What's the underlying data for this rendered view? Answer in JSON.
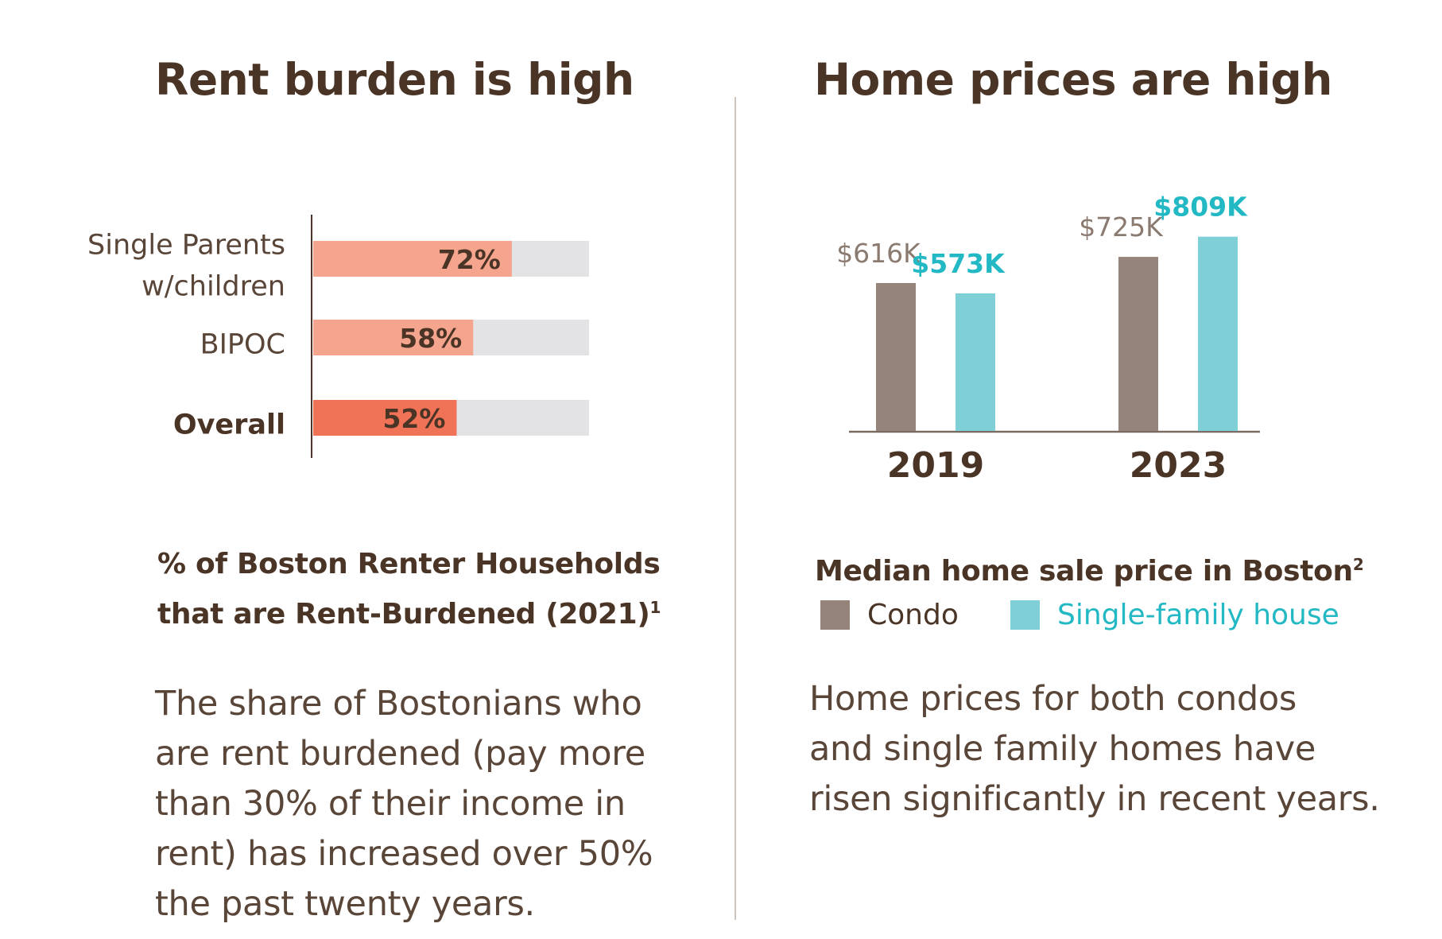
{
  "colors": {
    "condo": "#95847a",
    "single_family": "#7fd0d6",
    "single_family_text": "#22b8c4",
    "rent_bar": "#f5a48e",
    "rent_bar_overall": "#f07257",
    "track": "#e3e3e5",
    "dark_text": "#4a3426",
    "price_label": "#8a7a70"
  },
  "left": {
    "title": "Rent burden is high",
    "caption_line1": "% of Boston Renter Households",
    "caption_line2": "that are Rent-Burdened (2021)",
    "caption_sup": "1",
    "body_lines": [
      "The share of Bostonians who",
      "are rent burdened (pay more",
      "than 30% of their income in",
      "rent) has increased over 50%",
      "the past twenty years."
    ]
  },
  "right": {
    "title": "Home prices are high",
    "caption": "Median home sale price in Boston",
    "caption_sup": "2",
    "legend": {
      "condo": "Condo",
      "single_family": "Single-family house"
    },
    "body_lines": [
      "Home prices for both condos",
      "and single family homes have",
      "risen significantly in recent years."
    ]
  },
  "chart_data": [
    {
      "type": "bar",
      "orientation": "horizontal",
      "title": "% of Boston Renter Households that are Rent-Burdened (2021)",
      "categories": [
        "Single Parents w/children",
        "BIPOC",
        "Overall"
      ],
      "category_lines": [
        [
          "Single Parents",
          "w/children"
        ],
        [
          "BIPOC"
        ],
        [
          "Overall"
        ]
      ],
      "values": [
        72,
        58,
        52
      ],
      "value_labels": [
        "72%",
        "58%",
        "52%"
      ],
      "xlim": [
        0,
        100
      ],
      "highlight": "Overall"
    },
    {
      "type": "bar",
      "title": "Median home sale price in Boston",
      "categories": [
        "2019",
        "2023"
      ],
      "series": [
        {
          "name": "Condo",
          "values": [
            616,
            725
          ],
          "labels": [
            "$616K",
            "$725K"
          ]
        },
        {
          "name": "Single-family house",
          "values": [
            573,
            809
          ],
          "labels": [
            "$573K",
            "$809K"
          ]
        }
      ],
      "unit": "thousand USD"
    }
  ]
}
